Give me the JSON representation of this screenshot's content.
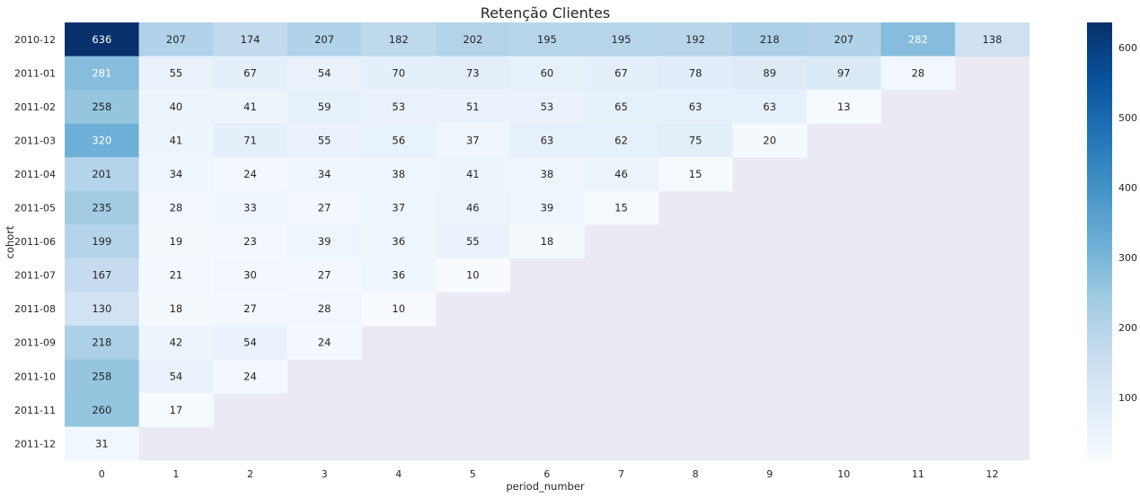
{
  "chart_data": {
    "type": "heatmap",
    "title": "Retenção Clientes",
    "xlabel": "period_number",
    "ylabel": "cohort",
    "x": [
      "0",
      "1",
      "2",
      "3",
      "4",
      "5",
      "6",
      "7",
      "8",
      "9",
      "10",
      "11",
      "12"
    ],
    "y": [
      "2010-12",
      "2011-01",
      "2011-02",
      "2011-03",
      "2011-04",
      "2011-05",
      "2011-06",
      "2011-07",
      "2011-08",
      "2011-09",
      "2011-10",
      "2011-11",
      "2011-12"
    ],
    "values": [
      [
        636,
        207,
        174,
        207,
        182,
        202,
        195,
        195,
        192,
        218,
        207,
        282,
        138
      ],
      [
        281,
        55,
        67,
        54,
        70,
        73,
        60,
        67,
        78,
        89,
        97,
        28,
        null
      ],
      [
        258,
        40,
        41,
        59,
        53,
        51,
        53,
        65,
        63,
        63,
        13,
        null,
        null
      ],
      [
        320,
        41,
        71,
        55,
        56,
        37,
        63,
        62,
        75,
        20,
        null,
        null,
        null
      ],
      [
        201,
        34,
        24,
        34,
        38,
        41,
        38,
        46,
        15,
        null,
        null,
        null,
        null
      ],
      [
        235,
        28,
        33,
        27,
        37,
        46,
        39,
        15,
        null,
        null,
        null,
        null,
        null
      ],
      [
        199,
        19,
        23,
        39,
        36,
        55,
        18,
        null,
        null,
        null,
        null,
        null,
        null
      ],
      [
        167,
        21,
        30,
        27,
        36,
        10,
        null,
        null,
        null,
        null,
        null,
        null,
        null
      ],
      [
        130,
        18,
        27,
        28,
        10,
        null,
        null,
        null,
        null,
        null,
        null,
        null,
        null
      ],
      [
        218,
        42,
        54,
        24,
        null,
        null,
        null,
        null,
        null,
        null,
        null,
        null,
        null
      ],
      [
        258,
        54,
        24,
        null,
        null,
        null,
        null,
        null,
        null,
        null,
        null,
        null,
        null
      ],
      [
        260,
        17,
        null,
        null,
        null,
        null,
        null,
        null,
        null,
        null,
        null,
        null,
        null
      ],
      [
        31,
        null,
        null,
        null,
        null,
        null,
        null,
        null,
        null,
        null,
        null,
        null,
        null
      ]
    ],
    "vmin": 10,
    "vmax": 636,
    "colormap": "Blues",
    "missing_color": "#eaeaf2",
    "colorbar_ticks": [
      100,
      200,
      300,
      400,
      500,
      600
    ]
  }
}
